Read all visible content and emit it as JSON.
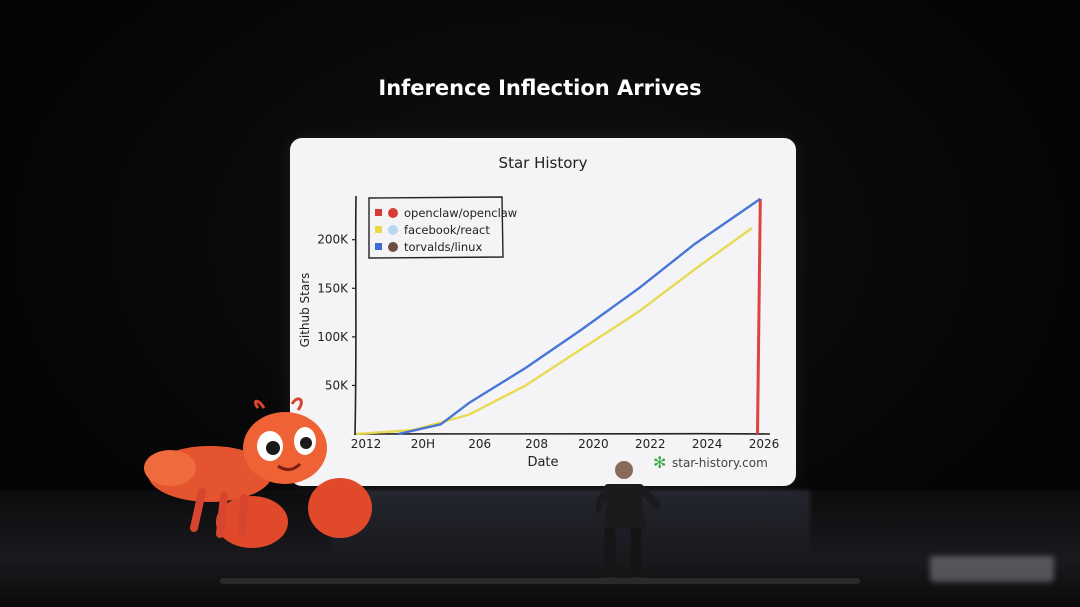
{
  "slide": {
    "title": "Inference Inflection Arrives"
  },
  "chart_data": {
    "type": "line",
    "title": "Star History",
    "xlabel": "Date",
    "ylabel": "Github Stars",
    "x_tick_labels": [
      "2012",
      "20H",
      "206",
      "208",
      "2020",
      "2022",
      "2024",
      "2026"
    ],
    "y_tick_labels": [
      "50K",
      "100K",
      "150K",
      "200K"
    ],
    "y_ticks": [
      50000,
      100000,
      150000,
      200000
    ],
    "xlim": [
      2012,
      2026.5
    ],
    "ylim": [
      0,
      245000
    ],
    "legend_position": "top-left",
    "grid": false,
    "series": [
      {
        "name": "openclaw/openclaw",
        "color": "#d93b32",
        "points": [
          [
            2026.2,
            0
          ],
          [
            2026.25,
            120000
          ],
          [
            2026.3,
            242000
          ]
        ]
      },
      {
        "name": "facebook/react",
        "color": "#e8d84a",
        "points": [
          [
            2012,
            0
          ],
          [
            2014,
            4000
          ],
          [
            2016,
            20000
          ],
          [
            2018,
            50000
          ],
          [
            2020,
            88000
          ],
          [
            2022,
            126000
          ],
          [
            2024,
            170000
          ],
          [
            2026,
            212000
          ]
        ]
      },
      {
        "name": "torvalds/linux",
        "color": "#3b6fd6",
        "points": [
          [
            2013.5,
            0
          ],
          [
            2015,
            10000
          ],
          [
            2016,
            32000
          ],
          [
            2018,
            68000
          ],
          [
            2020,
            108000
          ],
          [
            2022,
            150000
          ],
          [
            2024,
            196000
          ],
          [
            2026.3,
            242000
          ]
        ]
      }
    ],
    "watermark": "star-history.com"
  },
  "icons": {
    "brand": "star-history-logo",
    "lobster": "lobster-mascot",
    "person": "speaker-on-stage"
  },
  "colors": {
    "background": "#050505",
    "card": "#f4f4f6",
    "text": "#222222"
  }
}
